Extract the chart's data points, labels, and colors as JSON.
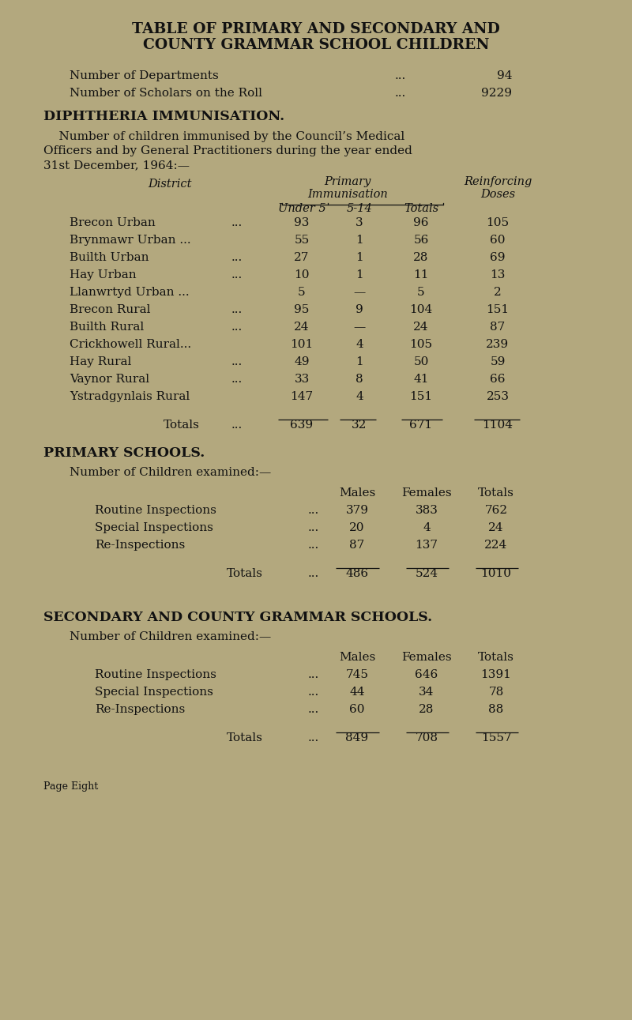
{
  "bg_color": "#b3a87e",
  "text_color": "#111111",
  "title_line1": "TABLE OF PRIMARY AND SECONDARY AND",
  "title_line2": "COUNTY GRAMMAR SCHOOL CHILDREN",
  "dept_label": "Number of Departments",
  "dept_dots": "...",
  "dept_value": "94",
  "scholars_label": "Number of Scholars on the Roll",
  "scholars_dots": "...",
  "scholars_value": "9229",
  "section1_heading": "DIPHTHERIA IMMUNISATION.",
  "section1_intro1": "    Number of children immunised by the Council’s Medical",
  "section1_intro2": "Officers and by General Practitioners during the year ended",
  "section1_intro3": "31st December, 1964:—",
  "diph_col_district": "District",
  "diph_col_primary": "Primary",
  "diph_col_immunisation": "Immunisation",
  "diph_col_reinforcing": "Reinforcing",
  "diph_col_doses": "Doses",
  "diph_col_under5": "Under 5",
  "diph_col_514": "5-14",
  "diph_col_totals": "Totals",
  "diph_rows": [
    [
      "Brecon Urban",
      "...",
      "93",
      "3",
      "96",
      "105"
    ],
    [
      "Brynmawr Urban ...",
      "",
      "55",
      "1",
      "56",
      "60"
    ],
    [
      "Builth Urban",
      "...",
      "27",
      "1",
      "28",
      "69"
    ],
    [
      "Hay Urban",
      "...",
      "10",
      "1",
      "11",
      "13"
    ],
    [
      "Llanwrtyd Urban ...",
      "",
      "5",
      "—",
      "5",
      "2"
    ],
    [
      "Brecon Rural",
      "...",
      "95",
      "9",
      "104",
      "151"
    ],
    [
      "Builth Rural",
      "...",
      "24",
      "—",
      "24",
      "87"
    ],
    [
      "Crickhowell Rural...",
      "",
      "101",
      "4",
      "105",
      "239"
    ],
    [
      "Hay Rural",
      "...",
      "49",
      "1",
      "50",
      "59"
    ],
    [
      "Vaynor Rural",
      "...",
      "33",
      "8",
      "41",
      "66"
    ],
    [
      "Ystradgynlais Rural",
      "",
      "147",
      "4",
      "151",
      "253"
    ]
  ],
  "diph_totals": [
    "Totals",
    "...",
    "639",
    "32",
    "671",
    "1104"
  ],
  "section2_heading": "PRIMARY SCHOOLS.",
  "section2_intro": "Number of Children examined:—",
  "prim_col_males": "Males",
  "prim_col_females": "Females",
  "prim_col_totals": "Totals",
  "prim_rows": [
    [
      "Routine Inspections",
      "...",
      "379",
      "383",
      "762"
    ],
    [
      "Special Inspections",
      "...",
      "20",
      "4",
      "24"
    ],
    [
      "Re-Inspections",
      "...",
      "87",
      "137",
      "224"
    ]
  ],
  "prim_totals": [
    "Totals",
    "...",
    "486",
    "524",
    "1010"
  ],
  "section3_heading": "SECONDARY AND COUNTY GRAMMAR SCHOOLS.",
  "section3_intro": "Number of Children examined:—",
  "sec_col_males": "Males",
  "sec_col_females": "Females",
  "sec_col_totals": "Totals",
  "sec_rows": [
    [
      "Routine Inspections",
      "...",
      "745",
      "646",
      "1391"
    ],
    [
      "Special Inspections",
      "...",
      "44",
      "34",
      "78"
    ],
    [
      "Re-Inspections",
      "...",
      "60",
      "28",
      "88"
    ]
  ],
  "sec_totals": [
    "Totals",
    "...",
    "849",
    "708",
    "1557"
  ],
  "footer": "Page Eight"
}
